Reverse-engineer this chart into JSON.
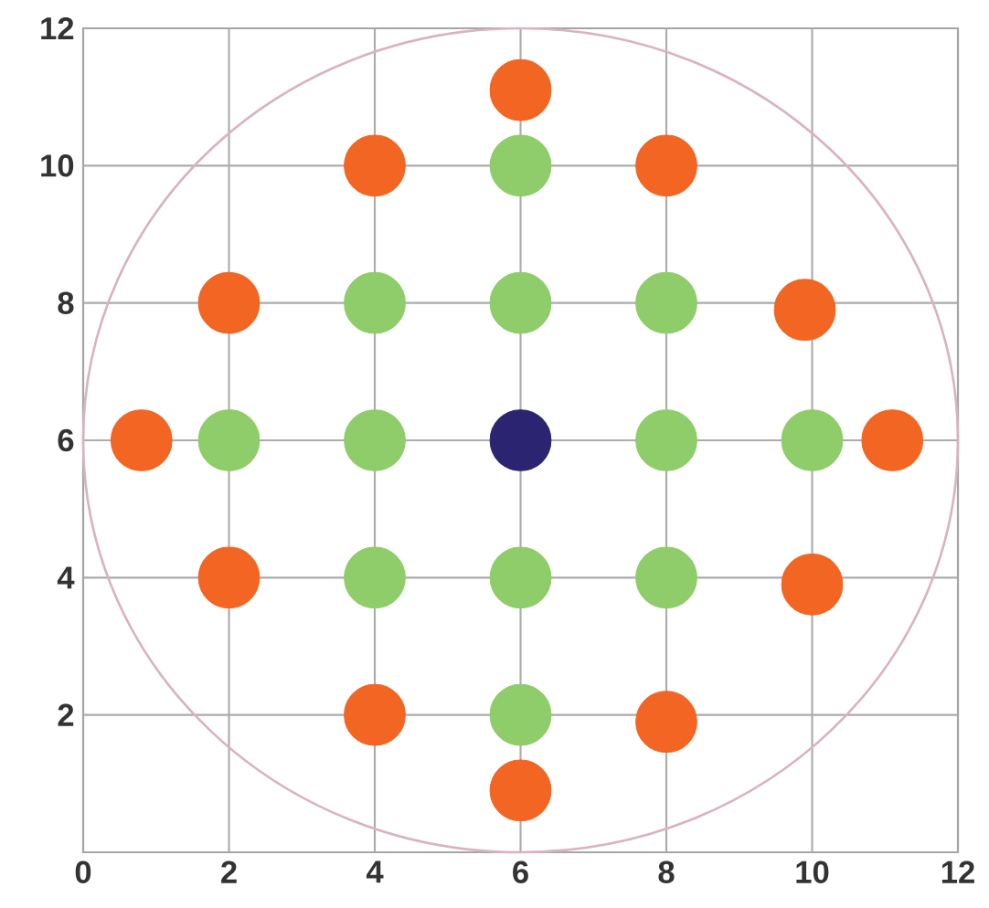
{
  "chart_data": {
    "type": "scatter",
    "xlim": [
      0,
      12
    ],
    "ylim": [
      0,
      12
    ],
    "xticks": [
      0,
      2,
      4,
      6,
      8,
      10,
      12
    ],
    "yticks": [
      2,
      4,
      6,
      8,
      10,
      12
    ],
    "grid": true,
    "marker": "circle",
    "series": [
      {
        "color": "#f26522",
        "x": [
          6,
          4,
          8,
          2,
          9.9,
          0.8,
          11.1,
          2,
          10,
          4,
          8,
          6
        ],
        "values": [
          11.1,
          10,
          10,
          8,
          7.9,
          6,
          6,
          4,
          3.9,
          2,
          1.9,
          0.9
        ]
      },
      {
        "color": "#8fcc6a",
        "x": [
          6,
          4,
          6,
          8,
          2,
          4,
          8,
          10,
          4,
          6,
          8,
          6
        ],
        "values": [
          10,
          8,
          8,
          8,
          6,
          6,
          6,
          6,
          4,
          4,
          4,
          2
        ]
      },
      {
        "color": "#2b2470",
        "x": [
          6
        ],
        "values": [
          6
        ]
      }
    ]
  }
}
